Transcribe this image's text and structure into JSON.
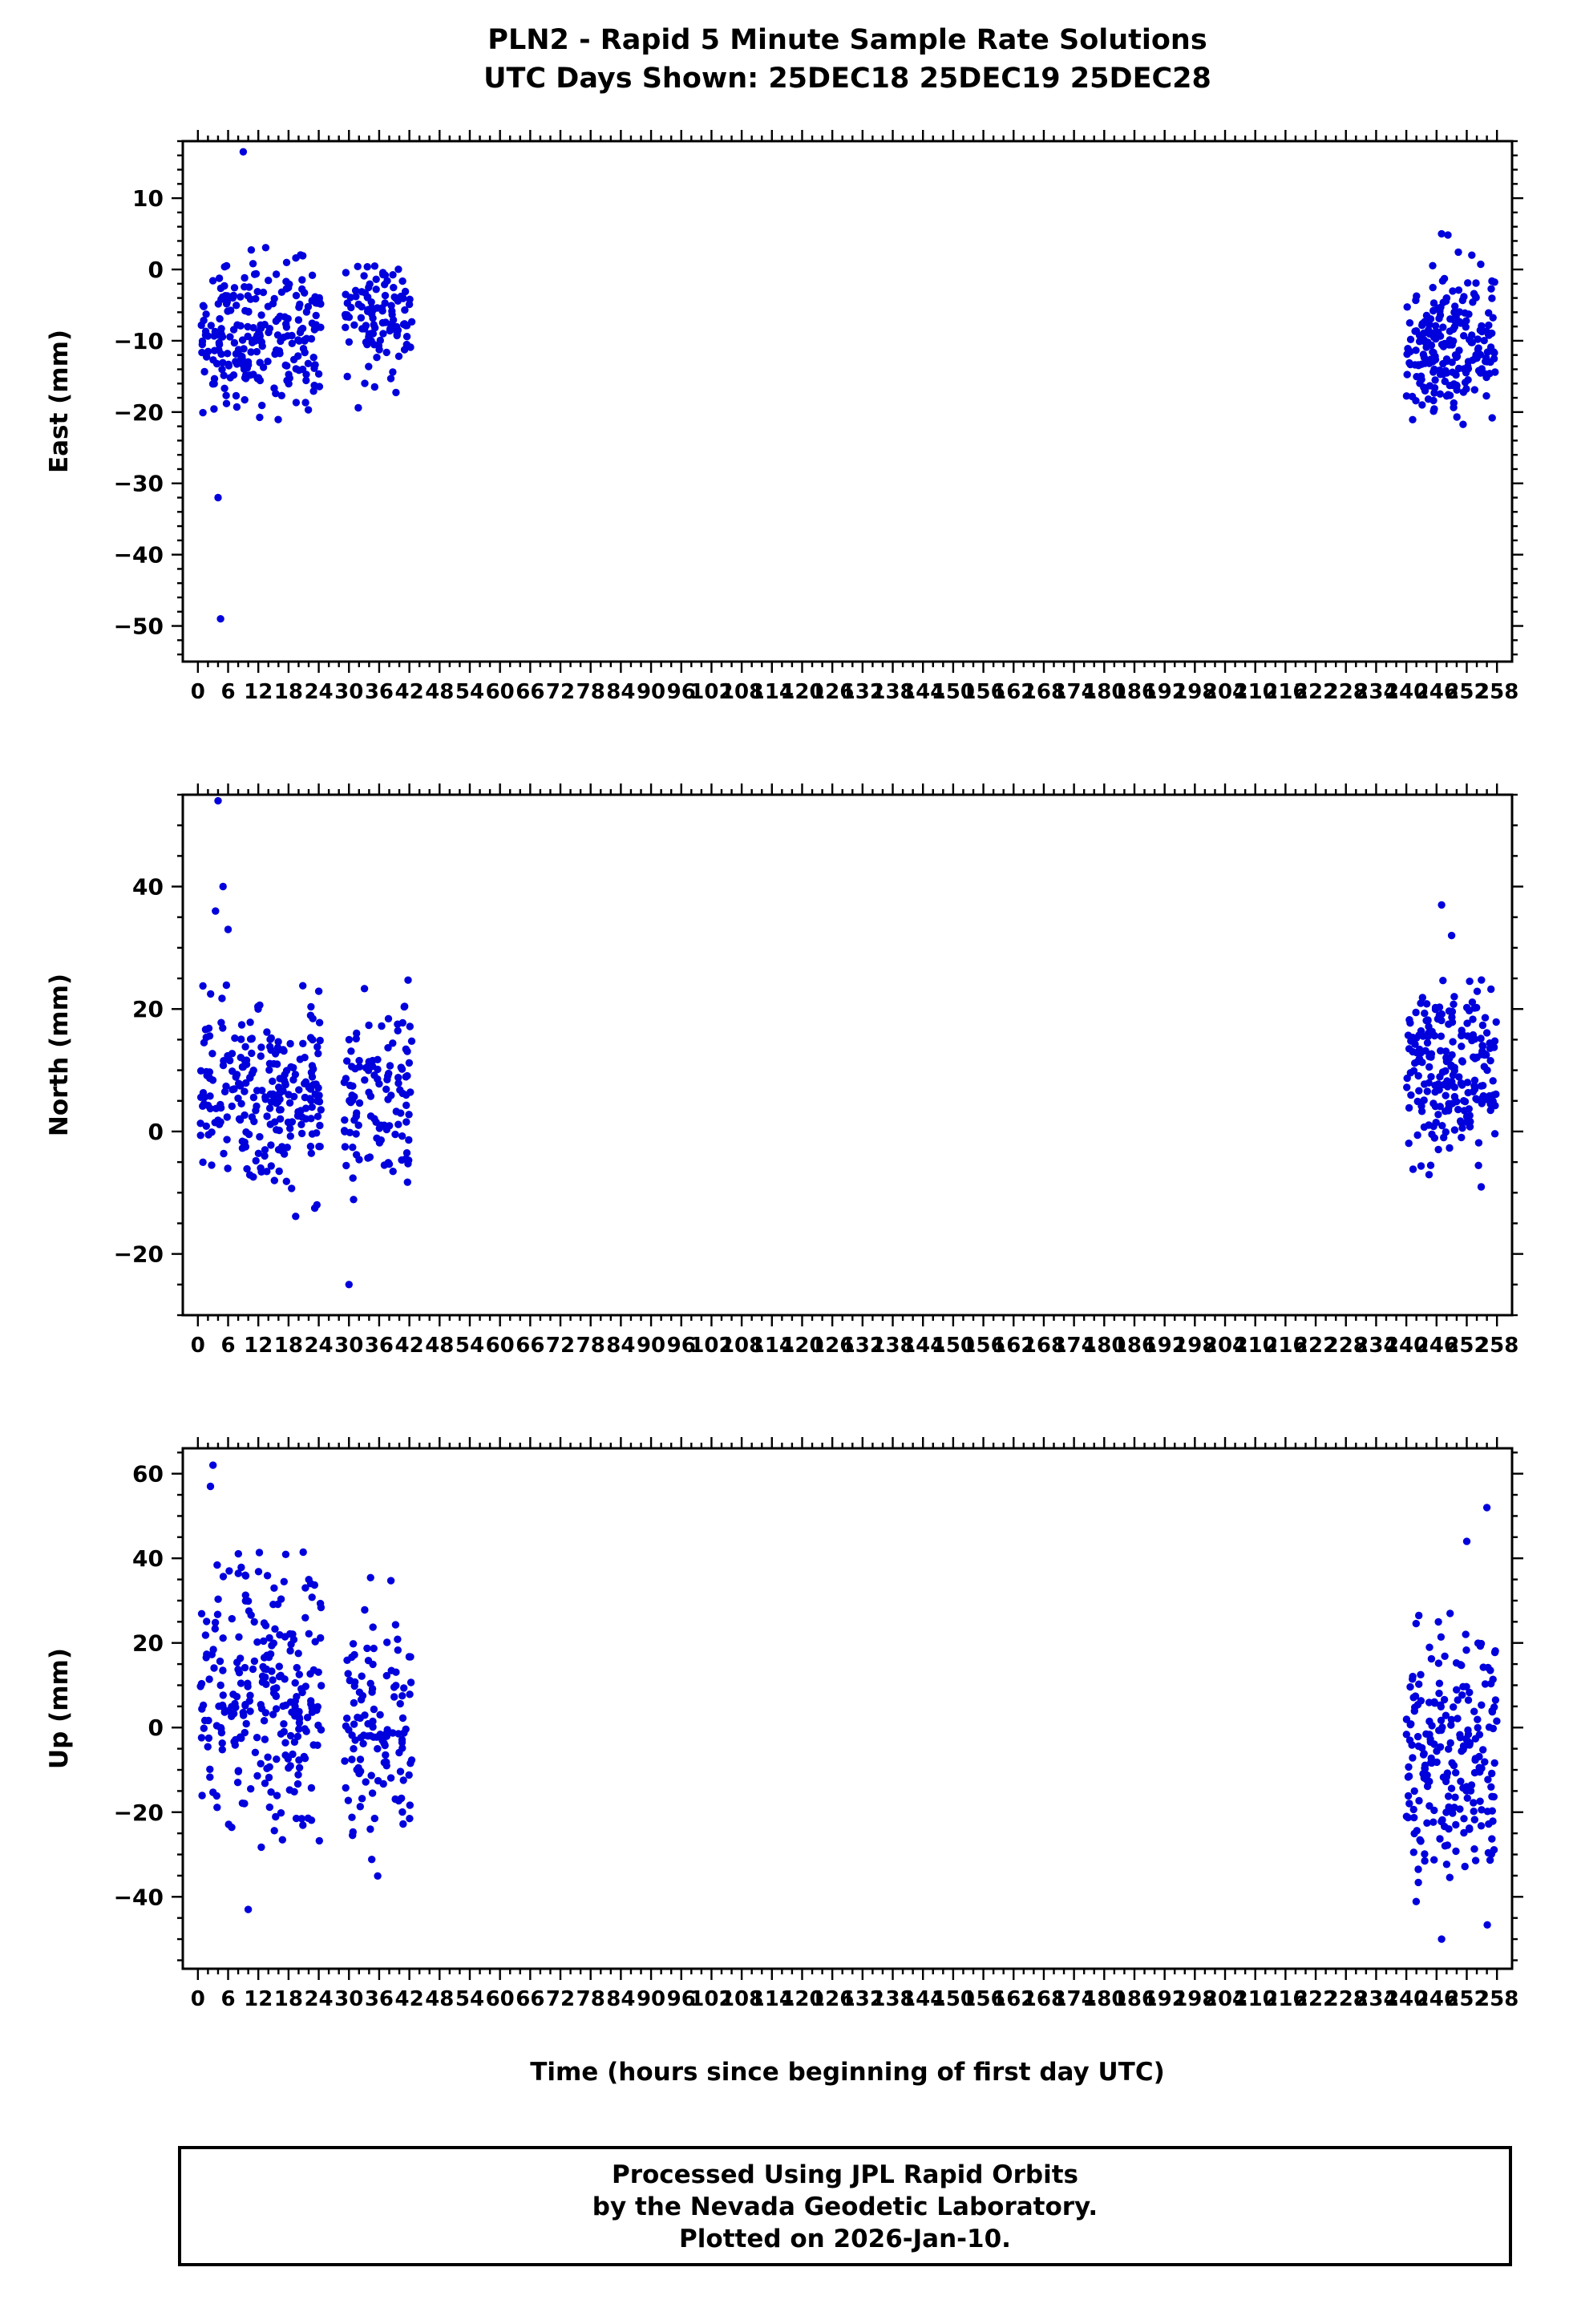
{
  "page": {
    "background": "#ffffff"
  },
  "title": {
    "line1": "PLN2 - Rapid 5 Minute Sample Rate Solutions",
    "line2": "UTC Days Shown:  25DEC18 25DEC19 25DEC28"
  },
  "xlabel": "Time (hours since beginning of first day UTC)",
  "footer": {
    "line1": "Processed Using JPL Rapid Orbits",
    "line2": "by the Nevada Geodetic Laboratory.",
    "line3": "Plotted on 2026-Jan-10."
  },
  "style": {
    "point_color": "#0000dd",
    "point_radius": 4.7,
    "axis_color": "#000000",
    "frame_width": 3
  },
  "chart_data": [
    {
      "type": "scatter",
      "panel": "east",
      "ylabel": "East (mm)",
      "ylim": [
        -55,
        18
      ],
      "yticks": [
        10,
        0,
        -10,
        -20,
        -30,
        -40,
        -50
      ],
      "y_major_step": 10,
      "y_minor_step": 2,
      "xlim": [
        -3,
        261
      ],
      "xticks": {
        "start": 0,
        "end": 258,
        "step": 6
      },
      "x_minor_step": 2,
      "clusters": [
        {
          "x_range": [
            0.5,
            24.5
          ],
          "count": 240,
          "y_mean": -9,
          "y_std": 5.5,
          "y_clamp": [
            -23,
            5
          ]
        },
        {
          "x_range": [
            29,
            42.5
          ],
          "count": 115,
          "y_mean": -7,
          "y_std": 4.5,
          "y_clamp": [
            -21,
            1
          ]
        },
        {
          "x_range": [
            240,
            258
          ],
          "count": 215,
          "y_mean": -11,
          "y_std": 5.0,
          "y_clamp": [
            -22,
            5
          ]
        }
      ],
      "outliers": [
        [
          9,
          16.5
        ],
        [
          4,
          -32
        ],
        [
          4.5,
          -49
        ],
        [
          247,
          5
        ],
        [
          253,
          2
        ]
      ]
    },
    {
      "type": "scatter",
      "panel": "north",
      "ylabel": "North (mm)",
      "ylim": [
        -30,
        55
      ],
      "yticks": [
        40,
        20,
        0,
        -20
      ],
      "y_major_step": 20,
      "y_minor_step": 5,
      "xlim": [
        -3,
        261
      ],
      "xticks": {
        "start": 0,
        "end": 258,
        "step": 6
      },
      "x_minor_step": 2,
      "clusters": [
        {
          "x_range": [
            0.5,
            24.5
          ],
          "count": 240,
          "y_mean": 6,
          "y_std": 7.0,
          "y_clamp": [
            -17,
            31
          ]
        },
        {
          "x_range": [
            29,
            42.5
          ],
          "count": 115,
          "y_mean": 5,
          "y_std": 7.0,
          "y_clamp": [
            -13,
            27
          ]
        },
        {
          "x_range": [
            240,
            258
          ],
          "count": 215,
          "y_mean": 10,
          "y_std": 7.0,
          "y_clamp": [
            -10,
            30
          ]
        }
      ],
      "outliers": [
        [
          4,
          54
        ],
        [
          5,
          40
        ],
        [
          3.5,
          36
        ],
        [
          6,
          33
        ],
        [
          30,
          -25
        ],
        [
          247,
          37
        ],
        [
          249,
          32
        ]
      ]
    },
    {
      "type": "scatter",
      "panel": "up",
      "ylabel": "Up (mm)",
      "ylim": [
        -57,
        66
      ],
      "yticks": [
        60,
        40,
        20,
        0,
        -20,
        -40
      ],
      "y_major_step": 20,
      "y_minor_step": 5,
      "xlim": [
        -3,
        261
      ],
      "xticks": {
        "start": 0,
        "end": 258,
        "step": 6
      },
      "x_minor_step": 2,
      "clusters": [
        {
          "x_range": [
            0.5,
            24.5
          ],
          "count": 250,
          "y_mean": 8,
          "y_std": 16.0,
          "y_clamp": [
            -34,
            55
          ]
        },
        {
          "x_range": [
            29,
            42.5
          ],
          "count": 120,
          "y_mean": -2,
          "y_std": 13.0,
          "y_clamp": [
            -43,
            40
          ]
        },
        {
          "x_range": [
            240,
            258
          ],
          "count": 220,
          "y_mean": -6,
          "y_std": 15.0,
          "y_clamp": [
            -50,
            45
          ]
        }
      ],
      "outliers": [
        [
          3,
          62
        ],
        [
          2.5,
          57
        ],
        [
          10,
          -43
        ],
        [
          256,
          52
        ],
        [
          252,
          44
        ],
        [
          247,
          -50
        ]
      ]
    }
  ]
}
